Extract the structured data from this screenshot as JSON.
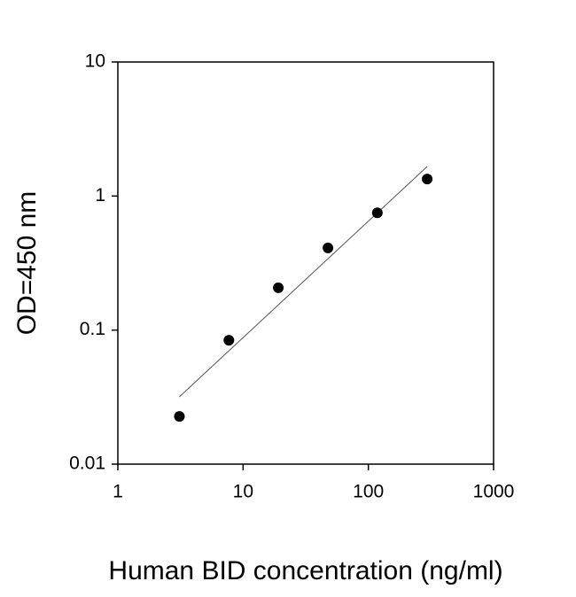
{
  "chart_data": {
    "type": "scatter",
    "xlabel": "Human BID concentration (ng/ml)",
    "ylabel": "OD=450 nm",
    "xscale": "log",
    "yscale": "log",
    "xlim": [
      1,
      1000
    ],
    "ylim": [
      0.01,
      10
    ],
    "xticks": [
      1,
      10,
      100,
      1000
    ],
    "yticks": [
      0.01,
      0.1,
      1,
      10
    ],
    "series": [
      {
        "color": "#000000",
        "x": [
          3.1,
          7.7,
          19.1,
          47.6,
          118,
          295
        ],
        "values": [
          0.0227,
          0.084,
          0.207,
          0.41,
          0.75,
          1.34
        ]
      }
    ],
    "fit": {
      "color": "#555555",
      "x": [
        3.1,
        295
      ],
      "values": [
        0.0318,
        1.66
      ]
    }
  }
}
